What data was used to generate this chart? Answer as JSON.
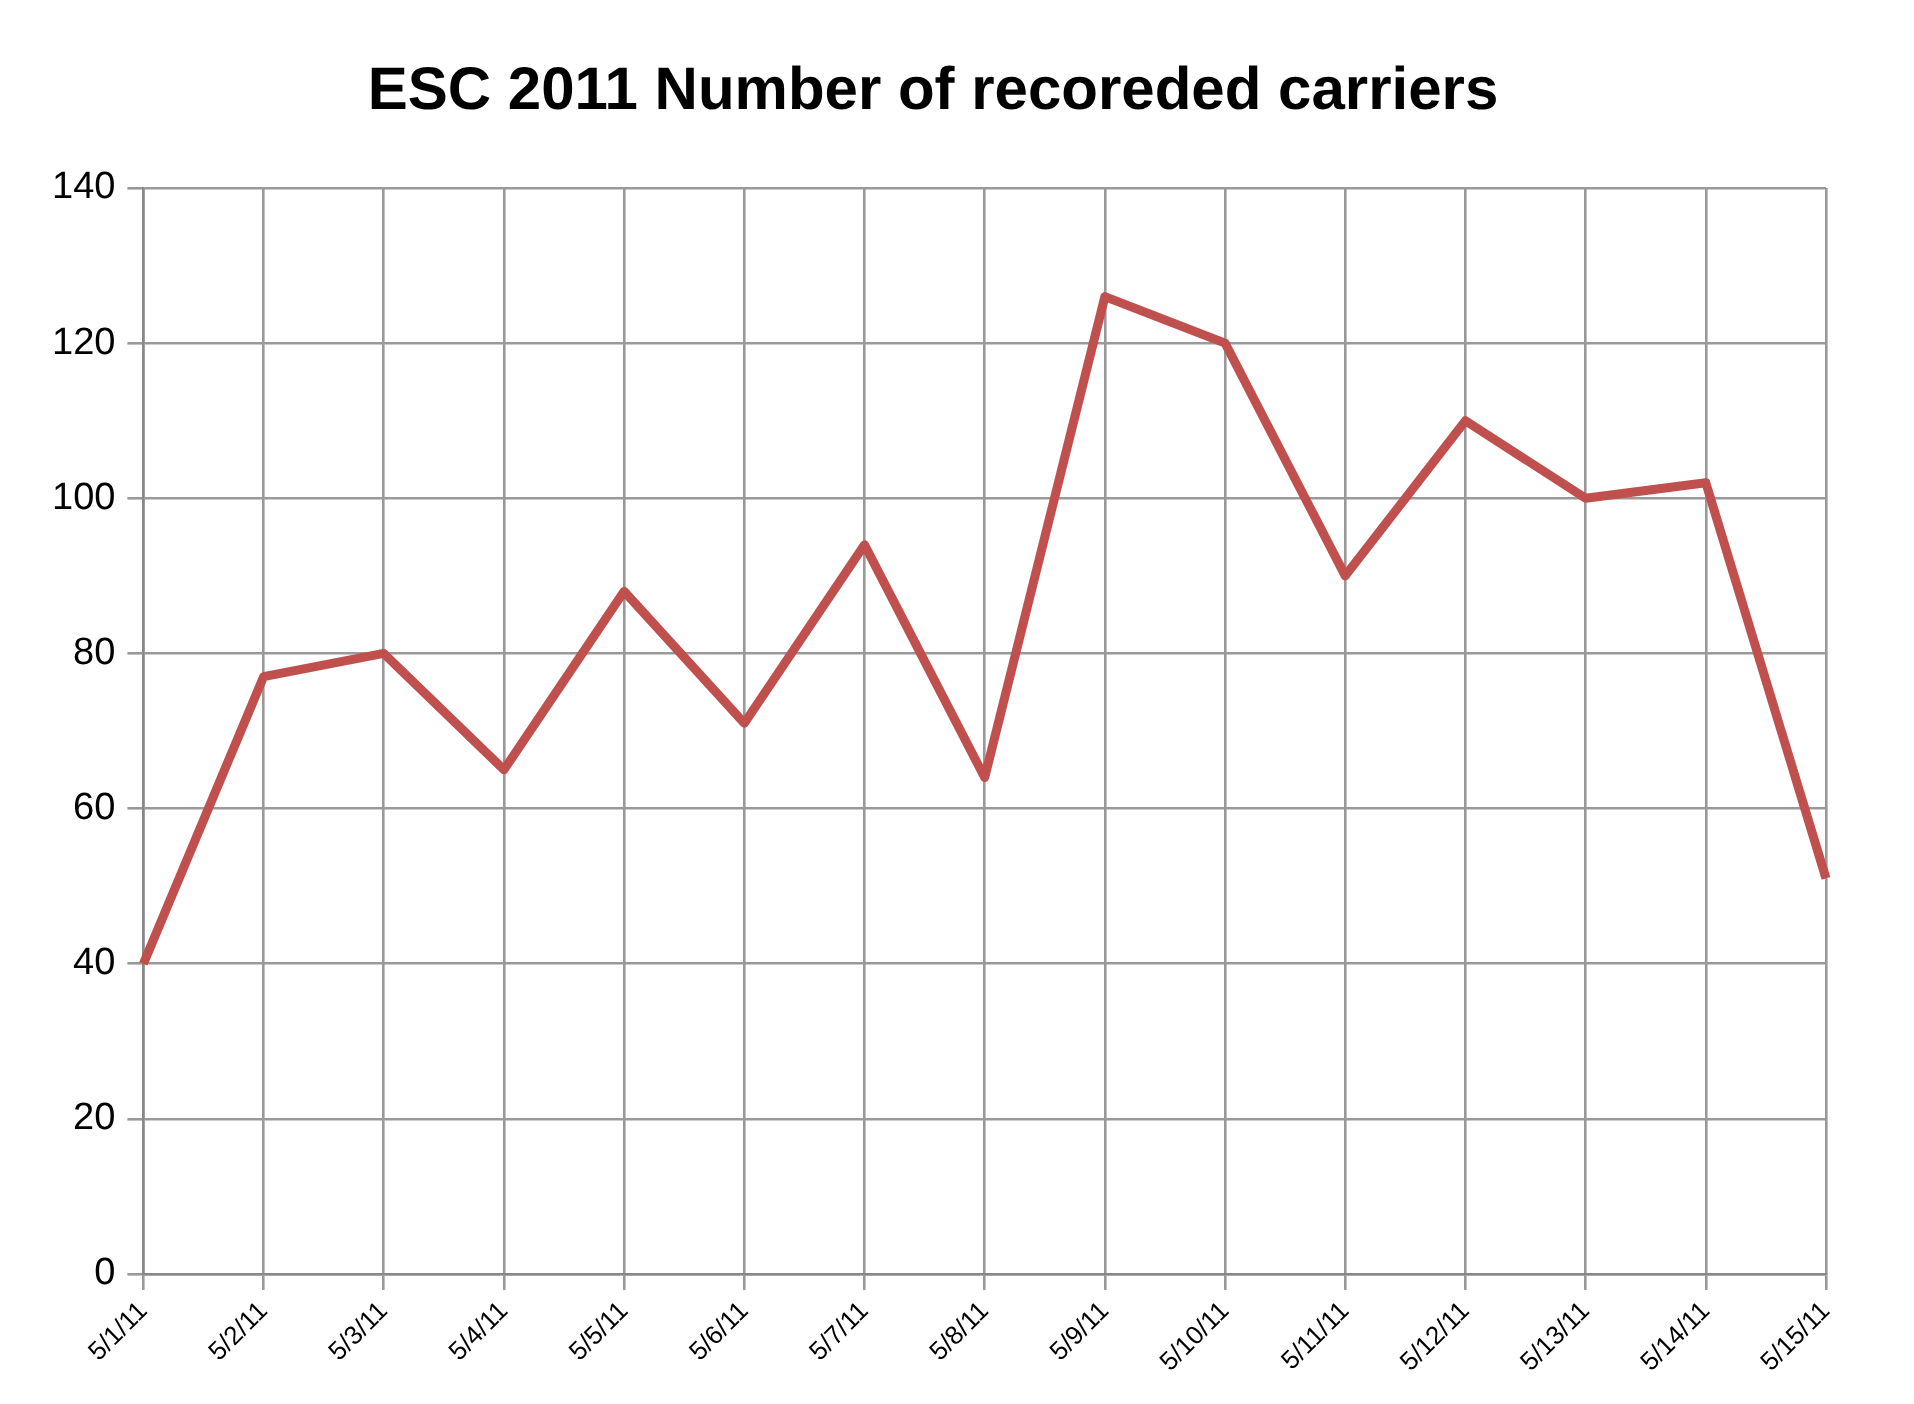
{
  "chart_data": {
    "type": "line",
    "title": "ESC 2011 Number of recoreded carriers",
    "categories": [
      "5/1/11",
      "5/2/11",
      "5/3/11",
      "5/4/11",
      "5/5/11",
      "5/6/11",
      "5/7/11",
      "5/8/11",
      "5/9/11",
      "5/10/11",
      "5/11/11",
      "5/12/11",
      "5/13/11",
      "5/14/11",
      "5/15/11"
    ],
    "series": [
      {
        "color": "#c0504d",
        "values": [
          40,
          77,
          80,
          65,
          88,
          71,
          94,
          64,
          126,
          120,
          90,
          110,
          100,
          102,
          51
        ]
      }
    ],
    "ylim": [
      0,
      140
    ],
    "yticks": [
      0,
      20,
      40,
      60,
      80,
      100,
      120,
      140
    ],
    "grid": true,
    "legend": false,
    "marker": "none",
    "line_style": "solid"
  }
}
